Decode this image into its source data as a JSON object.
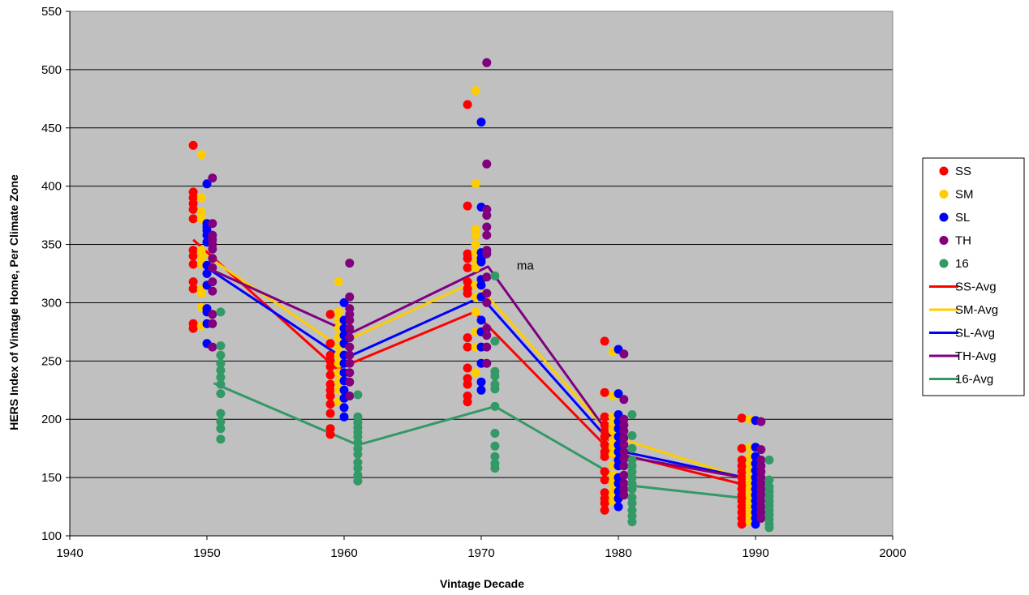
{
  "chart_data": {
    "type": "scatter",
    "title": "",
    "xlabel": "Vintage Decade",
    "ylabel": "HERS Index of Vintage Home, Per Climate Zone",
    "xlim": [
      1940,
      2000
    ],
    "ylim": [
      100,
      550
    ],
    "x_ticks": [
      "1940",
      "1950",
      "1960",
      "1970",
      "1980",
      "1990",
      "2000"
    ],
    "y_ticks": [
      "100",
      "150",
      "200",
      "250",
      "300",
      "350",
      "400",
      "450",
      "500",
      "550"
    ],
    "grid": "horizontal",
    "plot_background": "#c0c0c0",
    "legend_position": "right",
    "annotation": {
      "text": "ma",
      "x": 1972.6,
      "y": 332
    },
    "scatter_series": [
      {
        "name": "SS",
        "color": "#ff0000",
        "x": 1949,
        "values": [
          435,
          395,
          390,
          385,
          380,
          372,
          345,
          340,
          333,
          318,
          312,
          282,
          278
        ]
      },
      {
        "name": "SS",
        "color": "#ff0000",
        "x": 1959,
        "values": [
          290,
          265,
          255,
          250,
          245,
          238,
          230,
          225,
          220,
          213,
          205,
          192,
          187
        ]
      },
      {
        "name": "SS",
        "color": "#ff0000",
        "x": 1969,
        "values": [
          470,
          383,
          342,
          338,
          330,
          318,
          312,
          308,
          270,
          262,
          244,
          235,
          230,
          220,
          215
        ]
      },
      {
        "name": "SS",
        "color": "#ff0000",
        "x": 1979,
        "values": [
          267,
          223,
          202,
          195,
          190,
          185,
          178,
          172,
          168,
          155,
          148,
          137,
          132,
          128,
          122
        ]
      },
      {
        "name": "SS",
        "color": "#ff0000",
        "x": 1989,
        "values": [
          201,
          175,
          165,
          160,
          155,
          150,
          145,
          140,
          135,
          130,
          125,
          120,
          115,
          110
        ]
      },
      {
        "name": "SM",
        "color": "#ffcc00",
        "x": 1949.6,
        "values": [
          427,
          390,
          378,
          372,
          345,
          342,
          338,
          333,
          312,
          308,
          296,
          280
        ]
      },
      {
        "name": "SM",
        "color": "#ffcc00",
        "x": 1959.6,
        "values": [
          318,
          292,
          285,
          278,
          270,
          262,
          255,
          248,
          240,
          232,
          225,
          215
        ]
      },
      {
        "name": "SM",
        "color": "#ffcc00",
        "x": 1969.6,
        "values": [
          482,
          402,
          363,
          358,
          350,
          343,
          335,
          330,
          315,
          305,
          292,
          275,
          262,
          240
        ]
      },
      {
        "name": "SM",
        "color": "#ffcc00",
        "x": 1979.6,
        "values": [
          258,
          220,
          202,
          195,
          190,
          182,
          176,
          170,
          160,
          152,
          146,
          140,
          135,
          130
        ]
      },
      {
        "name": "SM",
        "color": "#ffcc00",
        "x": 1989.6,
        "values": [
          200,
          176,
          168,
          162,
          156,
          150,
          145,
          140,
          135,
          130,
          125,
          120,
          115,
          112
        ]
      },
      {
        "name": "SL",
        "color": "#0000ff",
        "x": 1950,
        "values": [
          402,
          368,
          365,
          362,
          358,
          352,
          332,
          325,
          315,
          295,
          292,
          282,
          265
        ]
      },
      {
        "name": "SL",
        "color": "#0000ff",
        "x": 1960,
        "values": [
          300,
          285,
          278,
          272,
          265,
          255,
          248,
          240,
          233,
          225,
          218,
          210,
          202
        ]
      },
      {
        "name": "SL",
        "color": "#0000ff",
        "x": 1970,
        "values": [
          455,
          382,
          343,
          338,
          335,
          320,
          315,
          305,
          285,
          275,
          262,
          248,
          232,
          225
        ]
      },
      {
        "name": "SL",
        "color": "#0000ff",
        "x": 1980,
        "values": [
          260,
          222,
          204,
          198,
          192,
          185,
          178,
          172,
          165,
          160,
          150,
          145,
          138,
          132,
          125
        ]
      },
      {
        "name": "SL",
        "color": "#0000ff",
        "x": 1990,
        "values": [
          199,
          176,
          168,
          162,
          156,
          150,
          145,
          140,
          135,
          130,
          125,
          120,
          115,
          110
        ]
      },
      {
        "name": "TH",
        "color": "#800080",
        "x": 1950.4,
        "values": [
          407,
          368,
          358,
          354,
          350,
          346,
          338,
          330,
          318,
          310,
          290,
          282,
          262
        ]
      },
      {
        "name": "TH",
        "color": "#800080",
        "x": 1960.4,
        "values": [
          334,
          305,
          295,
          290,
          285,
          278,
          270,
          262,
          255,
          248,
          240,
          232,
          220
        ]
      },
      {
        "name": "TH",
        "color": "#800080",
        "x": 1970.4,
        "values": [
          506,
          419,
          380,
          375,
          365,
          358,
          345,
          342,
          322,
          308,
          300,
          278,
          272,
          262,
          248
        ]
      },
      {
        "name": "TH",
        "color": "#800080",
        "x": 1980.4,
        "values": [
          256,
          217,
          200,
          195,
          190,
          184,
          178,
          172,
          166,
          160,
          152,
          145,
          140,
          135
        ]
      },
      {
        "name": "TH",
        "color": "#800080",
        "x": 1990.4,
        "values": [
          198,
          174,
          165,
          160,
          155,
          150,
          145,
          140,
          135,
          130,
          125,
          120,
          115
        ]
      },
      {
        "name": "16",
        "color": "#339966",
        "x": 1951,
        "values": [
          292,
          263,
          255,
          248,
          242,
          236,
          230,
          222,
          205,
          198,
          192,
          183
        ]
      },
      {
        "name": "16",
        "color": "#339966",
        "x": 1961,
        "values": [
          221,
          202,
          197,
          193,
          189,
          185,
          180,
          175,
          170,
          163,
          158,
          152,
          147
        ]
      },
      {
        "name": "16",
        "color": "#339966",
        "x": 1971,
        "values": [
          323,
          267,
          241,
          237,
          230,
          226,
          211,
          188,
          177,
          168,
          162,
          158
        ]
      },
      {
        "name": "16",
        "color": "#339966",
        "x": 1981,
        "values": [
          204,
          186,
          175,
          165,
          160,
          155,
          150,
          145,
          140,
          133,
          128,
          122,
          117,
          112
        ]
      },
      {
        "name": "16",
        "color": "#339966",
        "x": 1991,
        "values": [
          165,
          148,
          142,
          138,
          134,
          130,
          126,
          122,
          118,
          114,
          110,
          107
        ]
      }
    ],
    "avg_series": [
      {
        "name": "SS-Avg",
        "color": "#ff0000",
        "x": [
          1949,
          1959.5,
          1969.5,
          1979.5,
          1989.5
        ],
        "values": [
          354,
          243,
          292,
          172,
          143
        ]
      },
      {
        "name": "SM-Avg",
        "color": "#ffcc00",
        "x": [
          1949.5,
          1959.5,
          1969.5,
          1979.5,
          1989.5
        ],
        "values": [
          344,
          264,
          318,
          186,
          148
        ]
      },
      {
        "name": "SL-Avg",
        "color": "#0000ff",
        "x": [
          1949.5,
          1960,
          1970,
          1980,
          1990
        ],
        "values": [
          334,
          252,
          305,
          173,
          148
        ]
      },
      {
        "name": "TH-Avg",
        "color": "#800080",
        "x": [
          1950,
          1960.5,
          1970.5,
          1980.5,
          1990.5
        ],
        "values": [
          330,
          274,
          331,
          168,
          147
        ]
      },
      {
        "name": "16-Avg",
        "color": "#339966",
        "x": [
          1950.5,
          1961,
          1971,
          1981,
          1991
        ],
        "values": [
          231,
          178,
          211,
          143,
          130
        ]
      }
    ]
  },
  "legend": {
    "items": [
      {
        "label": "SS",
        "kind": "marker",
        "color": "#ff0000"
      },
      {
        "label": "SM",
        "kind": "marker",
        "color": "#ffcc00"
      },
      {
        "label": "SL",
        "kind": "marker",
        "color": "#0000ff"
      },
      {
        "label": "TH",
        "kind": "marker",
        "color": "#800080"
      },
      {
        "label": "16",
        "kind": "marker",
        "color": "#339966"
      },
      {
        "label": "SS-Avg",
        "kind": "line",
        "color": "#ff0000"
      },
      {
        "label": "SM-Avg",
        "kind": "line",
        "color": "#ffcc00"
      },
      {
        "label": "SL-Avg",
        "kind": "line",
        "color": "#0000ff"
      },
      {
        "label": "TH-Avg",
        "kind": "line",
        "color": "#800080"
      },
      {
        "label": "16-Avg",
        "kind": "line",
        "color": "#339966"
      }
    ]
  }
}
